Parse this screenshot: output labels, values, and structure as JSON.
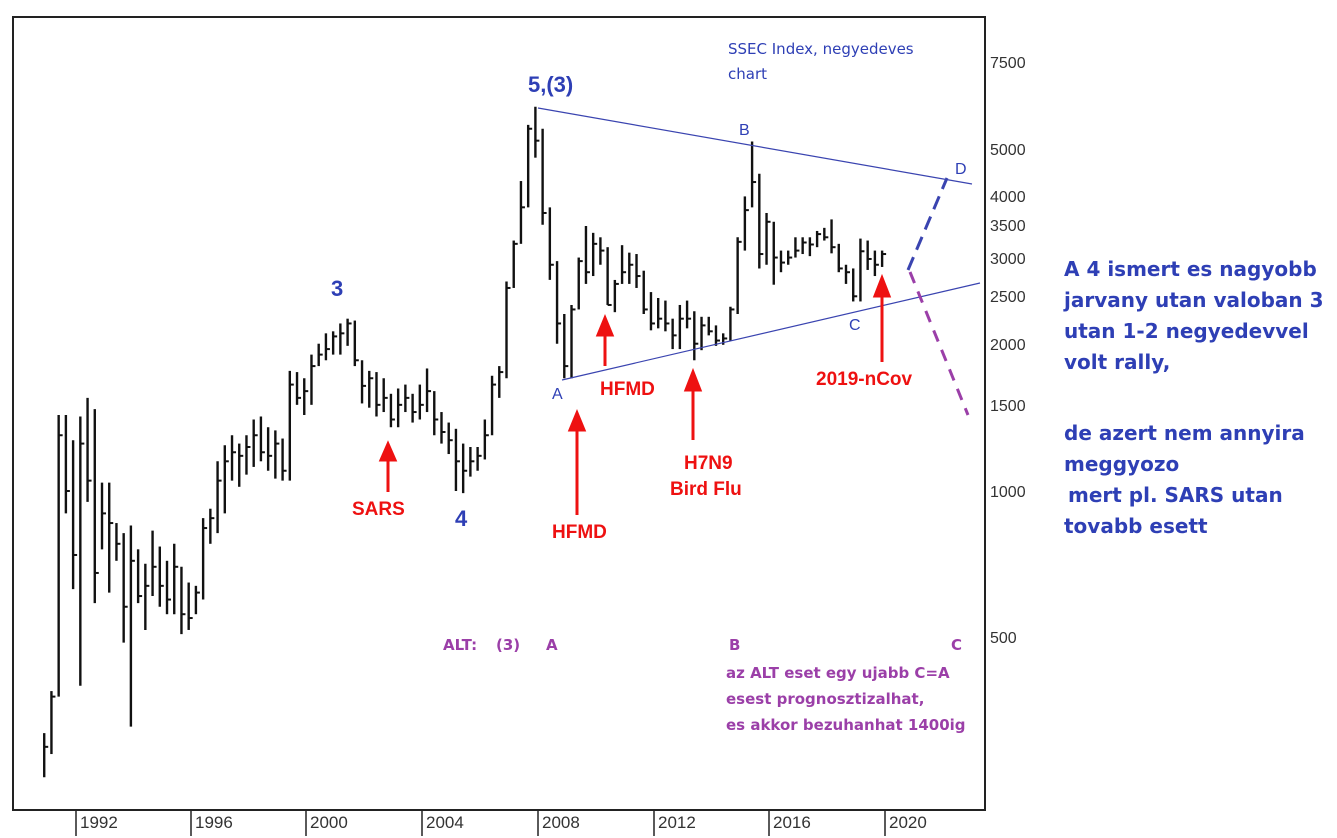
{
  "chart_data": {
    "type": "ohlc",
    "scale": "log",
    "title": "SSEC Index, negyedeves chart",
    "x_ticks": [
      "1992",
      "1996",
      "2000",
      "2004",
      "2008",
      "2012",
      "2016",
      "2020"
    ],
    "y_ticks": [
      "7500",
      "5000",
      "4000",
      "3500",
      "3000",
      "2500",
      "2000",
      "1500",
      "1000",
      "500"
    ],
    "ylim": [
      220,
      9000
    ],
    "xlim": [
      1989.5,
      2022
    ],
    "grid": false,
    "bars": [
      {
        "t": 1990.9,
        "h": 320,
        "l": 260,
        "c": 300
      },
      {
        "t": 1991.15,
        "h": 390,
        "l": 290,
        "c": 380
      },
      {
        "t": 1991.4,
        "h": 1430,
        "l": 380,
        "c": 1300
      },
      {
        "t": 1991.65,
        "h": 1430,
        "l": 900,
        "c": 1000
      },
      {
        "t": 1991.9,
        "h": 1270,
        "l": 630,
        "c": 740
      },
      {
        "t": 1992.15,
        "h": 1420,
        "l": 400,
        "c": 1250
      },
      {
        "t": 1992.4,
        "h": 1550,
        "l": 950,
        "c": 1050
      },
      {
        "t": 1992.65,
        "h": 1470,
        "l": 590,
        "c": 680
      },
      {
        "t": 1992.9,
        "h": 1040,
        "l": 760,
        "c": 900
      },
      {
        "t": 1993.15,
        "h": 1040,
        "l": 620,
        "c": 860
      },
      {
        "t": 1993.4,
        "h": 860,
        "l": 720,
        "c": 780
      },
      {
        "t": 1993.65,
        "h": 820,
        "l": 490,
        "c": 580
      },
      {
        "t": 1993.9,
        "h": 850,
        "l": 330,
        "c": 720
      },
      {
        "t": 1994.15,
        "h": 760,
        "l": 590,
        "c": 610
      },
      {
        "t": 1994.4,
        "h": 710,
        "l": 520,
        "c": 640
      },
      {
        "t": 1994.65,
        "h": 830,
        "l": 610,
        "c": 700
      },
      {
        "t": 1994.9,
        "h": 770,
        "l": 580,
        "c": 640
      },
      {
        "t": 1995.15,
        "h": 720,
        "l": 560,
        "c": 600
      },
      {
        "t": 1995.4,
        "h": 780,
        "l": 560,
        "c": 700
      },
      {
        "t": 1995.65,
        "h": 700,
        "l": 510,
        "c": 560
      },
      {
        "t": 1995.9,
        "h": 650,
        "l": 520,
        "c": 550
      },
      {
        "t": 1996.15,
        "h": 640,
        "l": 560,
        "c": 620
      },
      {
        "t": 1996.4,
        "h": 880,
        "l": 600,
        "c": 840
      },
      {
        "t": 1996.65,
        "h": 920,
        "l": 780,
        "c": 880
      },
      {
        "t": 1996.9,
        "h": 1150,
        "l": 820,
        "c": 1050
      },
      {
        "t": 1997.15,
        "h": 1240,
        "l": 900,
        "c": 1150
      },
      {
        "t": 1997.4,
        "h": 1300,
        "l": 1050,
        "c": 1200
      },
      {
        "t": 1997.65,
        "h": 1250,
        "l": 1020,
        "c": 1180
      },
      {
        "t": 1997.9,
        "h": 1300,
        "l": 1080,
        "c": 1230
      },
      {
        "t": 1998.15,
        "h": 1400,
        "l": 1120,
        "c": 1300
      },
      {
        "t": 1998.4,
        "h": 1420,
        "l": 1150,
        "c": 1200
      },
      {
        "t": 1998.65,
        "h": 1350,
        "l": 1100,
        "c": 1180
      },
      {
        "t": 1998.9,
        "h": 1330,
        "l": 1060,
        "c": 1250
      },
      {
        "t": 1999.15,
        "h": 1280,
        "l": 1050,
        "c": 1100
      },
      {
        "t": 1999.4,
        "h": 1760,
        "l": 1050,
        "c": 1650
      },
      {
        "t": 1999.65,
        "h": 1750,
        "l": 1500,
        "c": 1550
      },
      {
        "t": 1999.9,
        "h": 1700,
        "l": 1430,
        "c": 1600
      },
      {
        "t": 2000.15,
        "h": 1900,
        "l": 1500,
        "c": 1800
      },
      {
        "t": 2000.4,
        "h": 2000,
        "l": 1800,
        "c": 1900
      },
      {
        "t": 2000.65,
        "h": 2100,
        "l": 1850,
        "c": 1950
      },
      {
        "t": 2000.9,
        "h": 2120,
        "l": 1900,
        "c": 2070
      },
      {
        "t": 2001.15,
        "h": 2200,
        "l": 1900,
        "c": 2100
      },
      {
        "t": 2001.4,
        "h": 2250,
        "l": 1980,
        "c": 2200
      },
      {
        "t": 2001.65,
        "h": 2230,
        "l": 1800,
        "c": 1850
      },
      {
        "t": 2001.9,
        "h": 1850,
        "l": 1510,
        "c": 1640
      },
      {
        "t": 2002.15,
        "h": 1760,
        "l": 1480,
        "c": 1700
      },
      {
        "t": 2002.4,
        "h": 1750,
        "l": 1420,
        "c": 1500
      },
      {
        "t": 2002.65,
        "h": 1700,
        "l": 1450,
        "c": 1550
      },
      {
        "t": 2002.9,
        "h": 1580,
        "l": 1350,
        "c": 1400
      },
      {
        "t": 2003.15,
        "h": 1620,
        "l": 1350,
        "c": 1500
      },
      {
        "t": 2003.4,
        "h": 1650,
        "l": 1450,
        "c": 1550
      },
      {
        "t": 2003.65,
        "h": 1580,
        "l": 1380,
        "c": 1450
      },
      {
        "t": 2003.9,
        "h": 1650,
        "l": 1400,
        "c": 1500
      },
      {
        "t": 2004.15,
        "h": 1780,
        "l": 1450,
        "c": 1600
      },
      {
        "t": 2004.4,
        "h": 1600,
        "l": 1300,
        "c": 1400
      },
      {
        "t": 2004.65,
        "h": 1450,
        "l": 1250,
        "c": 1320
      },
      {
        "t": 2004.9,
        "h": 1380,
        "l": 1190,
        "c": 1270
      },
      {
        "t": 2005.15,
        "h": 1340,
        "l": 1000,
        "c": 1150
      },
      {
        "t": 2005.4,
        "h": 1250,
        "l": 990,
        "c": 1100
      },
      {
        "t": 2005.65,
        "h": 1230,
        "l": 1070,
        "c": 1150
      },
      {
        "t": 2005.9,
        "h": 1230,
        "l": 1100,
        "c": 1180
      },
      {
        "t": 2006.15,
        "h": 1400,
        "l": 1160,
        "c": 1300
      },
      {
        "t": 2006.4,
        "h": 1720,
        "l": 1300,
        "c": 1650
      },
      {
        "t": 2006.65,
        "h": 1800,
        "l": 1550,
        "c": 1750
      },
      {
        "t": 2006.9,
        "h": 2680,
        "l": 1700,
        "c": 2600
      },
      {
        "t": 2007.15,
        "h": 3250,
        "l": 2600,
        "c": 3200
      },
      {
        "t": 2007.4,
        "h": 4300,
        "l": 3200,
        "c": 3800
      },
      {
        "t": 2007.65,
        "h": 5600,
        "l": 3800,
        "c": 5500
      },
      {
        "t": 2007.9,
        "h": 6100,
        "l": 4800,
        "c": 5200
      },
      {
        "t": 2008.15,
        "h": 5500,
        "l": 3500,
        "c": 3700
      },
      {
        "t": 2008.4,
        "h": 3800,
        "l": 2700,
        "c": 2900
      },
      {
        "t": 2008.65,
        "h": 2950,
        "l": 2000,
        "c": 2200
      },
      {
        "t": 2008.9,
        "h": 2300,
        "l": 1700,
        "c": 1800
      },
      {
        "t": 2009.15,
        "h": 2400,
        "l": 1700,
        "c": 2350
      },
      {
        "t": 2009.4,
        "h": 3000,
        "l": 2350,
        "c": 2950
      },
      {
        "t": 2009.65,
        "h": 3480,
        "l": 2650,
        "c": 2800
      },
      {
        "t": 2009.9,
        "h": 3370,
        "l": 2750,
        "c": 3200
      },
      {
        "t": 2010.15,
        "h": 3300,
        "l": 2900,
        "c": 3100
      },
      {
        "t": 2010.4,
        "h": 3150,
        "l": 2400,
        "c": 2400
      },
      {
        "t": 2010.65,
        "h": 2700,
        "l": 2320,
        "c": 2650
      },
      {
        "t": 2010.9,
        "h": 3180,
        "l": 2650,
        "c": 2800
      },
      {
        "t": 2011.15,
        "h": 3070,
        "l": 2650,
        "c": 2900
      },
      {
        "t": 2011.4,
        "h": 3050,
        "l": 2600,
        "c": 2750
      },
      {
        "t": 2011.65,
        "h": 2820,
        "l": 2300,
        "c": 2350
      },
      {
        "t": 2011.9,
        "h": 2550,
        "l": 2130,
        "c": 2200
      },
      {
        "t": 2012.15,
        "h": 2480,
        "l": 2150,
        "c": 2250
      },
      {
        "t": 2012.4,
        "h": 2450,
        "l": 2120,
        "c": 2200
      },
      {
        "t": 2012.65,
        "h": 2250,
        "l": 1950,
        "c": 2080
      },
      {
        "t": 2012.9,
        "h": 2400,
        "l": 1950,
        "c": 2250
      },
      {
        "t": 2013.15,
        "h": 2450,
        "l": 2150,
        "c": 2250
      },
      {
        "t": 2013.4,
        "h": 2330,
        "l": 1850,
        "c": 2000
      },
      {
        "t": 2013.65,
        "h": 2270,
        "l": 1940,
        "c": 2180
      },
      {
        "t": 2013.9,
        "h": 2270,
        "l": 2080,
        "c": 2120
      },
      {
        "t": 2014.15,
        "h": 2180,
        "l": 1980,
        "c": 2030
      },
      {
        "t": 2014.4,
        "h": 2100,
        "l": 1990,
        "c": 2050
      },
      {
        "t": 2014.65,
        "h": 2380,
        "l": 2030,
        "c": 2350
      },
      {
        "t": 2014.9,
        "h": 3300,
        "l": 2300,
        "c": 3230
      },
      {
        "t": 2015.15,
        "h": 4000,
        "l": 3100,
        "c": 3750
      },
      {
        "t": 2015.4,
        "h": 5180,
        "l": 3800,
        "c": 4280
      },
      {
        "t": 2015.65,
        "h": 4450,
        "l": 2850,
        "c": 3050
      },
      {
        "t": 2015.9,
        "h": 3700,
        "l": 2900,
        "c": 3550
      },
      {
        "t": 2016.15,
        "h": 3550,
        "l": 2640,
        "c": 3000
      },
      {
        "t": 2016.4,
        "h": 3100,
        "l": 2800,
        "c": 2930
      },
      {
        "t": 2016.65,
        "h": 3100,
        "l": 2900,
        "c": 3000
      },
      {
        "t": 2016.9,
        "h": 3300,
        "l": 3000,
        "c": 3100
      },
      {
        "t": 2017.15,
        "h": 3300,
        "l": 3050,
        "c": 3220
      },
      {
        "t": 2017.4,
        "h": 3300,
        "l": 3020,
        "c": 3190
      },
      {
        "t": 2017.65,
        "h": 3400,
        "l": 3150,
        "c": 3350
      },
      {
        "t": 2017.9,
        "h": 3450,
        "l": 3250,
        "c": 3300
      },
      {
        "t": 2018.15,
        "h": 3590,
        "l": 3060,
        "c": 3150
      },
      {
        "t": 2018.4,
        "h": 3200,
        "l": 2800,
        "c": 2850
      },
      {
        "t": 2018.65,
        "h": 2900,
        "l": 2650,
        "c": 2800
      },
      {
        "t": 2018.9,
        "h": 2850,
        "l": 2440,
        "c": 2500
      },
      {
        "t": 2019.15,
        "h": 3280,
        "l": 2440,
        "c": 3090
      },
      {
        "t": 2019.4,
        "h": 3250,
        "l": 2830,
        "c": 2980
      },
      {
        "t": 2019.65,
        "h": 3100,
        "l": 2750,
        "c": 2900
      },
      {
        "t": 2019.9,
        "h": 3100,
        "l": 2870,
        "c": 3050
      }
    ],
    "wave_labels": [
      "5,(3)",
      "3",
      "4",
      "A",
      "B",
      "C",
      "D"
    ],
    "event_labels": [
      "SARS",
      "HFMD",
      "HFMD",
      "H7N9",
      "Bird Flu",
      "2019-nCov"
    ],
    "alt_labels": [
      "ALT:",
      "(3)",
      "A",
      "B",
      "C"
    ],
    "annotations": [
      "az ALT eset egy ujabb C=A",
      "esest prognosztizalhat,",
      "es akkor bezuhanhat 1400ig"
    ],
    "colors": {
      "bars": "#111111",
      "wave": "#2e3fb5",
      "events": "#ee1111",
      "alt": "#9b3fa8",
      "frame": "#222222"
    }
  },
  "side_note": {
    "line1": "A 4 ismert es nagyobb",
    "line2": "jarvany utan valoban 3",
    "line3": "utan 1-2 negyedevvel",
    "line4": "volt rally,",
    "line5": "de azert nem annyira",
    "line6": "meggyozo",
    "line7": "mert pl. SARS utan",
    "line8": "tovabb esett"
  }
}
